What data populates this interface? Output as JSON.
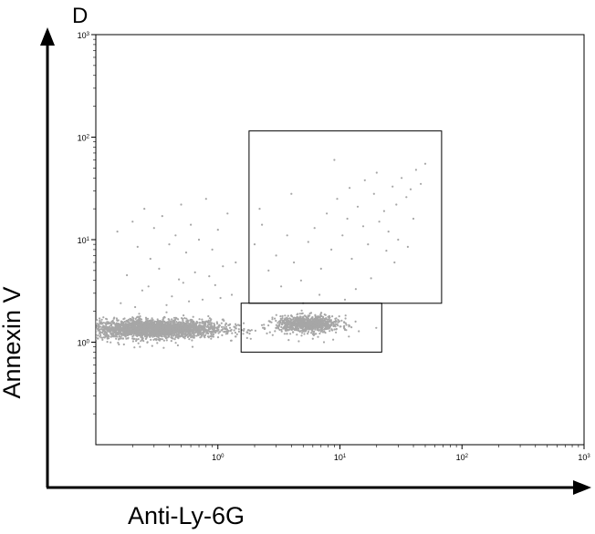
{
  "panel_label": "D",
  "chart_data": {
    "type": "scatter",
    "title": "",
    "xlabel": "Anti-Ly-6G",
    "ylabel": "Annexin V",
    "x_scale": "log",
    "y_scale": "log",
    "xlim": [
      0.1,
      1000
    ],
    "ylim": [
      0.1,
      1000
    ],
    "x_ticks": [
      {
        "value": 1,
        "base": "10",
        "exp": "0"
      },
      {
        "value": 10,
        "base": "10",
        "exp": "1"
      },
      {
        "value": 100,
        "base": "10",
        "exp": "2"
      },
      {
        "value": 1000,
        "base": "10",
        "exp": "3"
      }
    ],
    "y_ticks": [
      {
        "value": 1,
        "base": "10",
        "exp": "0"
      },
      {
        "value": 10,
        "base": "10",
        "exp": "1"
      },
      {
        "value": 100,
        "base": "10",
        "exp": "2"
      },
      {
        "value": 1000,
        "base": "10",
        "exp": "3"
      }
    ],
    "grid": false,
    "point_color": "#a6a6a6",
    "populations": [
      {
        "x_center": 0.3,
        "y_center": 1.35,
        "x_spread_decades": 0.28,
        "y_spread_decades": 0.045,
        "approx_count": 2600
      },
      {
        "x_center": 5.5,
        "y_center": 1.5,
        "x_spread_decades": 0.13,
        "y_spread_decades": 0.04,
        "approx_count": 900
      }
    ],
    "sparse_points": [
      [
        0.15,
        12.0
      ],
      [
        0.2,
        15.0
      ],
      [
        0.22,
        8.5
      ],
      [
        0.25,
        20.0
      ],
      [
        0.28,
        6.5
      ],
      [
        0.3,
        13.0
      ],
      [
        0.35,
        17.0
      ],
      [
        0.4,
        9.0
      ],
      [
        0.45,
        11.0
      ],
      [
        0.5,
        22.0
      ],
      [
        0.55,
        7.5
      ],
      [
        0.6,
        14.0
      ],
      [
        0.7,
        10.0
      ],
      [
        0.8,
        25.0
      ],
      [
        0.9,
        8.0
      ],
      [
        1.0,
        12.5
      ],
      [
        1.2,
        18.0
      ],
      [
        1.4,
        6.0
      ],
      [
        0.18,
        4.5
      ],
      [
        0.24,
        3.2
      ],
      [
        0.33,
        5.2
      ],
      [
        0.42,
        2.8
      ],
      [
        0.52,
        3.8
      ],
      [
        0.65,
        4.8
      ],
      [
        0.75,
        2.6
      ],
      [
        0.95,
        3.6
      ],
      [
        1.1,
        5.5
      ],
      [
        1.3,
        2.9
      ],
      [
        0.16,
        2.4
      ],
      [
        0.21,
        2.2
      ],
      [
        0.27,
        3.5
      ],
      [
        0.38,
        2.3
      ],
      [
        0.48,
        4.1
      ],
      [
        0.58,
        2.5
      ],
      [
        0.85,
        4.4
      ],
      [
        1.05,
        2.7
      ],
      [
        2.0,
        9.0
      ],
      [
        2.3,
        14.0
      ],
      [
        2.6,
        5.0
      ],
      [
        3.0,
        7.0
      ],
      [
        3.3,
        3.5
      ],
      [
        3.7,
        11.0
      ],
      [
        4.2,
        6.0
      ],
      [
        4.8,
        4.0
      ],
      [
        5.5,
        9.5
      ],
      [
        6.2,
        13.0
      ],
      [
        7.0,
        5.2
      ],
      [
        7.8,
        18.0
      ],
      [
        8.5,
        8.0
      ],
      [
        9.5,
        25.0
      ],
      [
        10.5,
        11.0
      ],
      [
        11.5,
        16.0
      ],
      [
        12.5,
        6.5
      ],
      [
        14.0,
        21.0
      ],
      [
        15.5,
        13.5
      ],
      [
        17.0,
        9.0
      ],
      [
        19.0,
        28.0
      ],
      [
        21.0,
        15.0
      ],
      [
        23.0,
        19.0
      ],
      [
        25.0,
        12.0
      ],
      [
        27.0,
        33.0
      ],
      [
        29.0,
        22.0
      ],
      [
        32.0,
        40.0
      ],
      [
        35.0,
        26.0
      ],
      [
        38.0,
        31.0
      ],
      [
        42.0,
        48.0
      ],
      [
        46.0,
        35.0
      ],
      [
        50.0,
        55.0
      ],
      [
        18.0,
        4.2
      ],
      [
        24.0,
        7.8
      ],
      [
        30.0,
        10.0
      ],
      [
        40.0,
        16.0
      ],
      [
        9.0,
        60.0
      ],
      [
        20.0,
        45.0
      ],
      [
        12.0,
        32.0
      ],
      [
        16.0,
        38.0
      ],
      [
        5.0,
        2.4
      ],
      [
        6.8,
        2.9
      ],
      [
        11.0,
        2.6
      ],
      [
        13.5,
        3.3
      ],
      [
        4.0,
        28.0
      ],
      [
        2.2,
        20.0
      ],
      [
        28.0,
        6.0
      ],
      [
        36.0,
        8.5
      ],
      [
        0.17,
        0.95
      ],
      [
        0.23,
        0.9
      ],
      [
        0.29,
        0.92
      ],
      [
        0.36,
        0.88
      ],
      [
        0.47,
        0.93
      ],
      [
        0.62,
        0.9
      ],
      [
        3.8,
        1.05
      ],
      [
        4.6,
        1.02
      ],
      [
        6.0,
        1.08
      ],
      [
        7.4,
        1.0
      ],
      [
        8.8,
        1.06
      ]
    ],
    "gates": [
      {
        "x_min": 1.8,
        "x_max": 68.0,
        "y_min": 2.4,
        "y_max": 115.0
      },
      {
        "x_min": 1.55,
        "x_max": 22.0,
        "y_min": 0.8,
        "y_max": 2.4
      }
    ]
  }
}
